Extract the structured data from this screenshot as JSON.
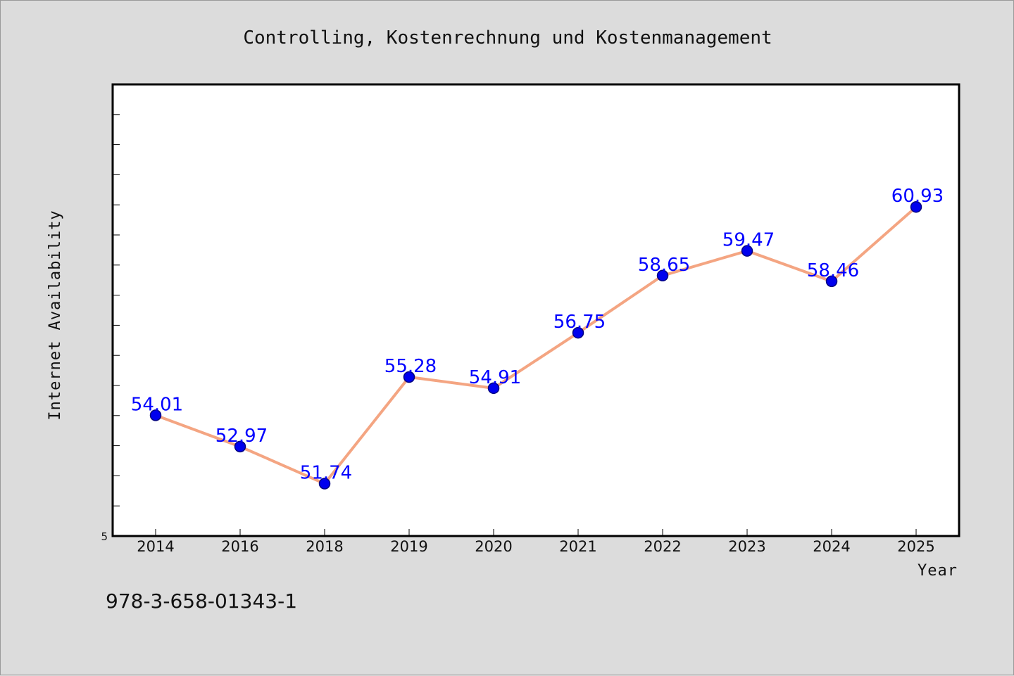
{
  "chart_data": {
    "type": "line",
    "title": "Controlling, Kostenrechnung und Kostenmanagement",
    "xlabel": "Year",
    "ylabel": "Internet Availability",
    "categories": [
      "2014",
      "2016",
      "2018",
      "2019",
      "2020",
      "2021",
      "2022",
      "2023",
      "2024",
      "2025"
    ],
    "series": [
      {
        "values": [
          54.01,
          52.97,
          51.74,
          55.28,
          54.91,
          56.75,
          58.65,
          59.47,
          58.46,
          60.93
        ],
        "labels": [
          "54.01",
          "52.97",
          "51.74",
          "55.28",
          "54.91",
          "56.75",
          "58.65",
          "59.47",
          "58.46",
          "60.93"
        ]
      }
    ],
    "ylim": [
      50.0,
      65.0
    ],
    "y_tick_step": 1.0,
    "y_origin_label": "5",
    "colors": {
      "line": "#f4a582",
      "marker_fill": "#0000ee",
      "marker_stroke": "#000080",
      "data_label": "#0000ff",
      "plot_background": "#ffffff",
      "figure_background": "#dcdcdc"
    },
    "grid": false,
    "legend": "none"
  },
  "footer": {
    "isbn": "978-3-658-01343-1"
  }
}
